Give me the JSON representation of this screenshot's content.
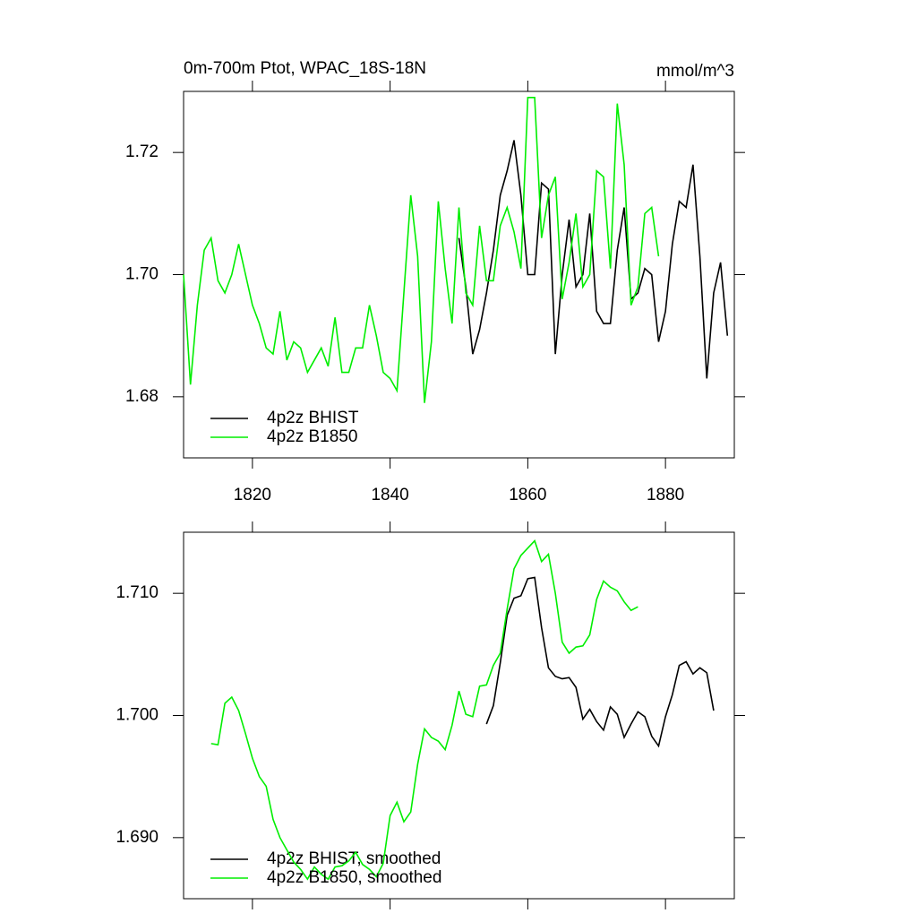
{
  "chart_data": [
    {
      "type": "line",
      "title": "0m-700m Ptot, WPAC_18S-18N",
      "units": "mmol/m^3",
      "xlim": [
        1810,
        1890
      ],
      "xticks": [
        1820,
        1840,
        1860,
        1880
      ],
      "ylim": [
        1.67,
        1.73
      ],
      "yticks": [
        1.68,
        {
          "value": 1.7,
          "label": "1.70"
        },
        1.72
      ],
      "legend": "lower left",
      "series": [
        {
          "name": "4p2z BHIST",
          "color": "#000000",
          "x": [
            1850,
            1851,
            1852,
            1853,
            1854,
            1855,
            1856,
            1857,
            1858,
            1859,
            1860,
            1861,
            1862,
            1863,
            1864,
            1865,
            1866,
            1867,
            1868,
            1869,
            1870,
            1871,
            1872,
            1873,
            1874,
            1875,
            1876,
            1877,
            1878,
            1879,
            1880,
            1881,
            1882,
            1883,
            1884,
            1885,
            1886,
            1887,
            1888,
            1889
          ],
          "values": [
            1.706,
            1.698,
            1.687,
            1.691,
            1.697,
            1.704,
            1.713,
            1.717,
            1.722,
            1.713,
            1.7,
            1.7,
            1.715,
            1.714,
            1.687,
            1.7,
            1.709,
            1.698,
            1.7,
            1.71,
            1.694,
            1.692,
            1.692,
            1.704,
            1.711,
            1.696,
            1.697,
            1.701,
            1.7,
            1.689,
            1.694,
            1.705,
            1.712,
            1.711,
            1.718,
            1.703,
            1.683,
            1.697,
            1.702,
            1.69
          ]
        },
        {
          "name": "4p2z B1850",
          "color": "#00ee00",
          "x": [
            1810,
            1811,
            1812,
            1813,
            1814,
            1815,
            1816,
            1817,
            1818,
            1819,
            1820,
            1821,
            1822,
            1823,
            1824,
            1825,
            1826,
            1827,
            1828,
            1829,
            1830,
            1831,
            1832,
            1833,
            1834,
            1835,
            1836,
            1837,
            1838,
            1839,
            1840,
            1841,
            1842,
            1843,
            1844,
            1845,
            1846,
            1847,
            1848,
            1849,
            1850,
            1851,
            1852,
            1853,
            1854,
            1855,
            1856,
            1857,
            1858,
            1859,
            1860,
            1861,
            1862,
            1863,
            1864,
            1865,
            1866,
            1867,
            1868,
            1869,
            1870,
            1871,
            1872,
            1873,
            1874,
            1875,
            1876,
            1877,
            1878,
            1879
          ],
          "values": [
            1.7,
            1.682,
            1.695,
            1.704,
            1.706,
            1.699,
            1.697,
            1.7,
            1.705,
            1.7,
            1.695,
            1.692,
            1.688,
            1.687,
            1.694,
            1.686,
            1.689,
            1.688,
            1.684,
            1.686,
            1.688,
            1.685,
            1.693,
            1.684,
            1.684,
            1.688,
            1.688,
            1.695,
            1.69,
            1.684,
            1.683,
            1.681,
            1.697,
            1.713,
            1.703,
            1.679,
            1.689,
            1.712,
            1.701,
            1.692,
            1.711,
            1.697,
            1.695,
            1.708,
            1.699,
            1.699,
            1.708,
            1.711,
            1.707,
            1.701,
            1.729,
            1.729,
            1.706,
            1.713,
            1.716,
            1.696,
            1.702,
            1.71,
            1.698,
            1.7,
            1.717,
            1.716,
            1.701,
            1.728,
            1.718,
            1.695,
            1.698,
            1.71,
            1.711,
            1.703
          ]
        }
      ]
    },
    {
      "type": "line",
      "xlim": [
        1810,
        1890
      ],
      "xticks": [
        1820,
        1840,
        1860,
        1880
      ],
      "ylim": [
        1.685,
        1.715
      ],
      "yticks": [
        {
          "value": 1.69,
          "label": "1.690"
        },
        {
          "value": 1.7,
          "label": "1.700"
        },
        {
          "value": 1.71,
          "label": "1.710"
        }
      ],
      "legend": "lower left",
      "series": [
        {
          "name": "4p2z BHIST, smoothed",
          "color": "#000000",
          "x": [
            1854,
            1855,
            1856,
            1857,
            1858,
            1859,
            1860,
            1861,
            1862,
            1863,
            1864,
            1865,
            1866,
            1867,
            1868,
            1869,
            1870,
            1871,
            1872,
            1873,
            1874,
            1875,
            1876,
            1877,
            1878,
            1879,
            1880,
            1881,
            1882,
            1883,
            1884,
            1885,
            1886,
            1887
          ],
          "values": [
            1.6993,
            1.7008,
            1.7043,
            1.7082,
            1.7096,
            1.7098,
            1.7112,
            1.7113,
            1.7072,
            1.7039,
            1.7032,
            1.703,
            1.7031,
            1.7023,
            1.6997,
            1.7005,
            1.6995,
            1.6988,
            1.7007,
            1.7001,
            1.6982,
            1.6993,
            1.7003,
            1.6999,
            1.6983,
            1.6975,
            1.6999,
            1.7017,
            1.7041,
            1.7044,
            1.7034,
            1.7039,
            1.7035,
            1.7004
          ]
        },
        {
          "name": "4p2z B1850, smoothed",
          "color": "#00ee00",
          "x": [
            1814,
            1815,
            1816,
            1817,
            1818,
            1819,
            1820,
            1821,
            1822,
            1823,
            1824,
            1825,
            1826,
            1827,
            1828,
            1829,
            1830,
            1831,
            1832,
            1833,
            1834,
            1835,
            1836,
            1837,
            1838,
            1839,
            1840,
            1841,
            1842,
            1843,
            1844,
            1845,
            1846,
            1847,
            1848,
            1849,
            1850,
            1851,
            1852,
            1853,
            1854,
            1855,
            1856,
            1857,
            1858,
            1859,
            1860,
            1861,
            1862,
            1863,
            1864,
            1865,
            1866,
            1867,
            1868,
            1869,
            1870,
            1871,
            1872,
            1873,
            1874,
            1875,
            1876
          ],
          "values": [
            1.6977,
            1.6976,
            1.701,
            1.7015,
            1.7004,
            1.6985,
            1.6965,
            1.695,
            1.6942,
            1.6915,
            1.69,
            1.689,
            1.688,
            1.6874,
            1.6866,
            1.6876,
            1.687,
            1.6866,
            1.6876,
            1.6877,
            1.6881,
            1.6888,
            1.6878,
            1.6874,
            1.6868,
            1.6879,
            1.6918,
            1.6929,
            1.6913,
            1.6921,
            1.696,
            1.6989,
            1.6982,
            1.6979,
            1.6972,
            1.6992,
            1.702,
            1.7001,
            1.6999,
            1.7024,
            1.7025,
            1.7041,
            1.7051,
            1.7087,
            1.712,
            1.7131,
            1.7137,
            1.7143,
            1.7126,
            1.7132,
            1.71,
            1.706,
            1.7051,
            1.7056,
            1.7057,
            1.7066,
            1.7095,
            1.711,
            1.7105,
            1.7102,
            1.7093,
            1.7086,
            1.7089
          ]
        }
      ]
    }
  ]
}
